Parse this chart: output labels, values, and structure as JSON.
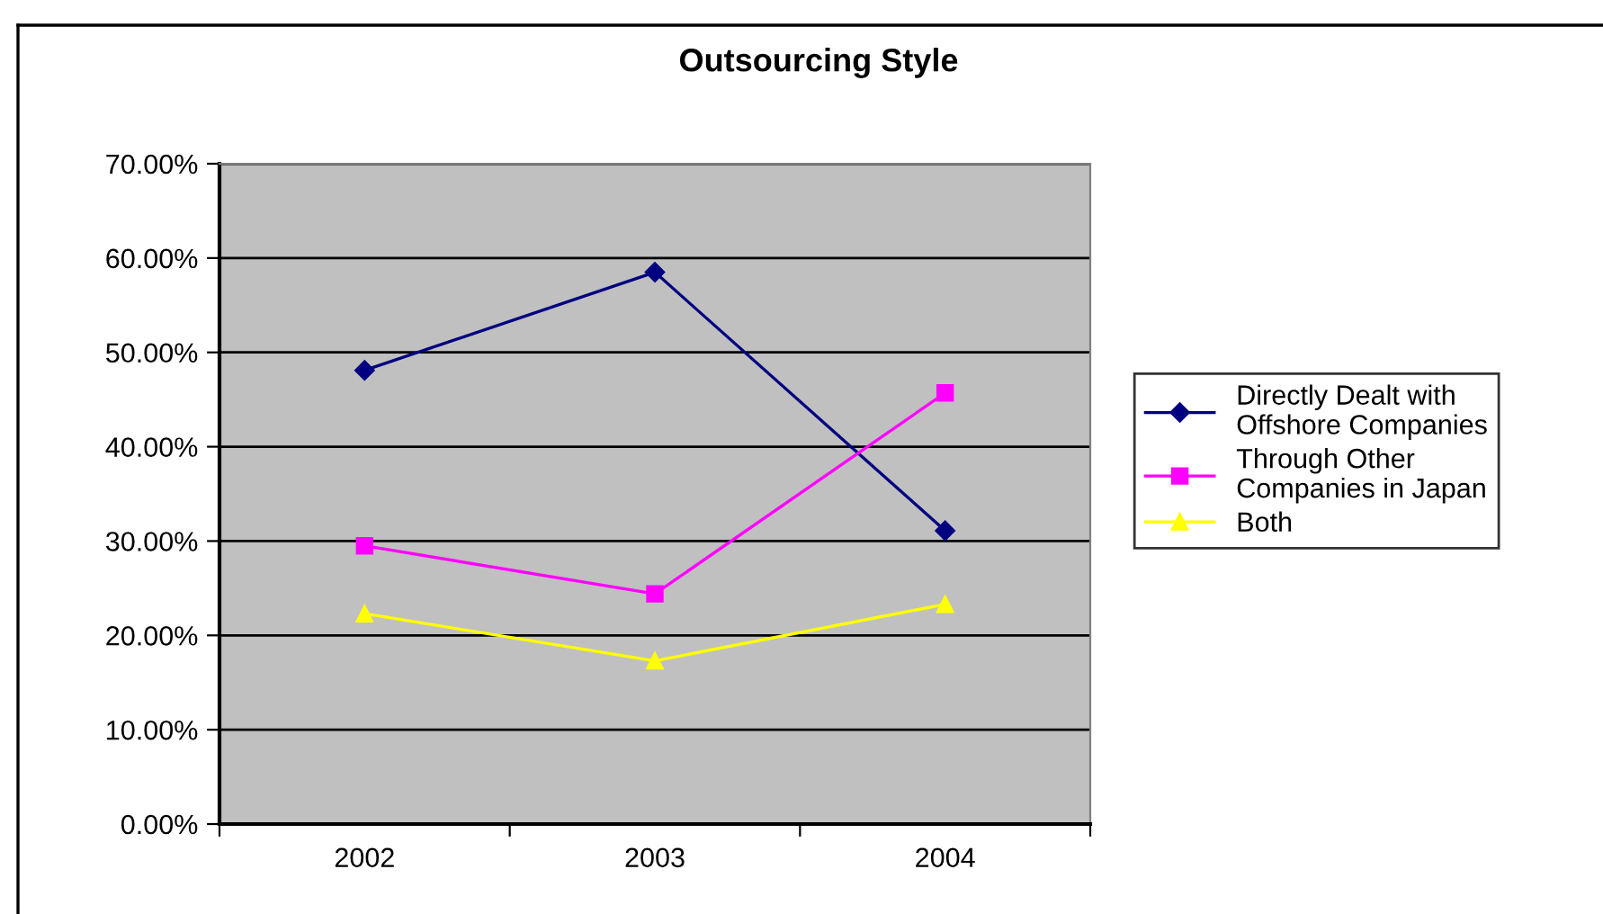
{
  "chart_data": {
    "type": "line",
    "title": "Outsourcing Style",
    "categories": [
      "2002",
      "2003",
      "2004"
    ],
    "series": [
      {
        "name": "Directly Dealt with\nOffshore Companies",
        "color": "#000080",
        "marker": "diamond",
        "values": [
          48.1,
          58.5,
          31.1
        ]
      },
      {
        "name": "Through Other\nCompanies in Japan",
        "color": "#ff00ff",
        "marker": "square",
        "values": [
          29.5,
          24.4,
          45.7
        ]
      },
      {
        "name": "Both",
        "color": "#ffff00",
        "marker": "triangle",
        "values": [
          22.3,
          17.3,
          23.3
        ]
      }
    ],
    "ylim": [
      0,
      70
    ],
    "yticks": [
      {
        "value": 0,
        "label": "0.00%"
      },
      {
        "value": 10,
        "label": "10.00%"
      },
      {
        "value": 20,
        "label": "20.00%"
      },
      {
        "value": 30,
        "label": "30.00%"
      },
      {
        "value": 40,
        "label": "40.00%"
      },
      {
        "value": 50,
        "label": "50.00%"
      },
      {
        "value": 60,
        "label": "60.00%"
      },
      {
        "value": 70,
        "label": "70.00%"
      }
    ],
    "grid": "y",
    "legend": "right",
    "line_style": "solid"
  }
}
